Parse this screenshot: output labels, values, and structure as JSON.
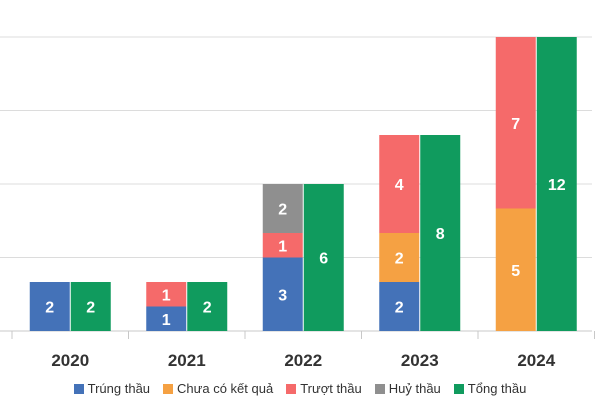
{
  "chart_data": {
    "type": "bar",
    "categories": [
      "2020",
      "2021",
      "2022",
      "2023",
      "2024"
    ],
    "stacked_bar": {
      "series": [
        {
          "name": "Trúng thầu",
          "color": "#4472b8",
          "values": [
            2,
            1,
            3,
            2,
            0
          ]
        },
        {
          "name": "Chưa có kết quả",
          "color": "#f5a143",
          "values": [
            0,
            0,
            0,
            2,
            5
          ]
        },
        {
          "name": "Trượt thầu",
          "color": "#f56a6a",
          "values": [
            0,
            1,
            1,
            4,
            7
          ]
        },
        {
          "name": "Huỷ thầu",
          "color": "#8f8f8f",
          "values": [
            0,
            0,
            2,
            0,
            0
          ]
        }
      ]
    },
    "total_bar": {
      "name": "Tổng thầu",
      "color": "#109b5e",
      "values": [
        2,
        2,
        6,
        8,
        12
      ]
    },
    "ylim": [
      0,
      12
    ],
    "grid": true,
    "legend": {
      "position": "bottom",
      "items": [
        {
          "name": "Trúng thầu",
          "color": "#4472b8"
        },
        {
          "name": "Chưa có kết quả",
          "color": "#f5a143"
        },
        {
          "name": "Trượt thầu",
          "color": "#f56a6a"
        },
        {
          "name": "Huỷ thầu",
          "color": "#8f8f8f"
        },
        {
          "name": "Tổng thầu",
          "color": "#109b5e"
        }
      ]
    }
  }
}
